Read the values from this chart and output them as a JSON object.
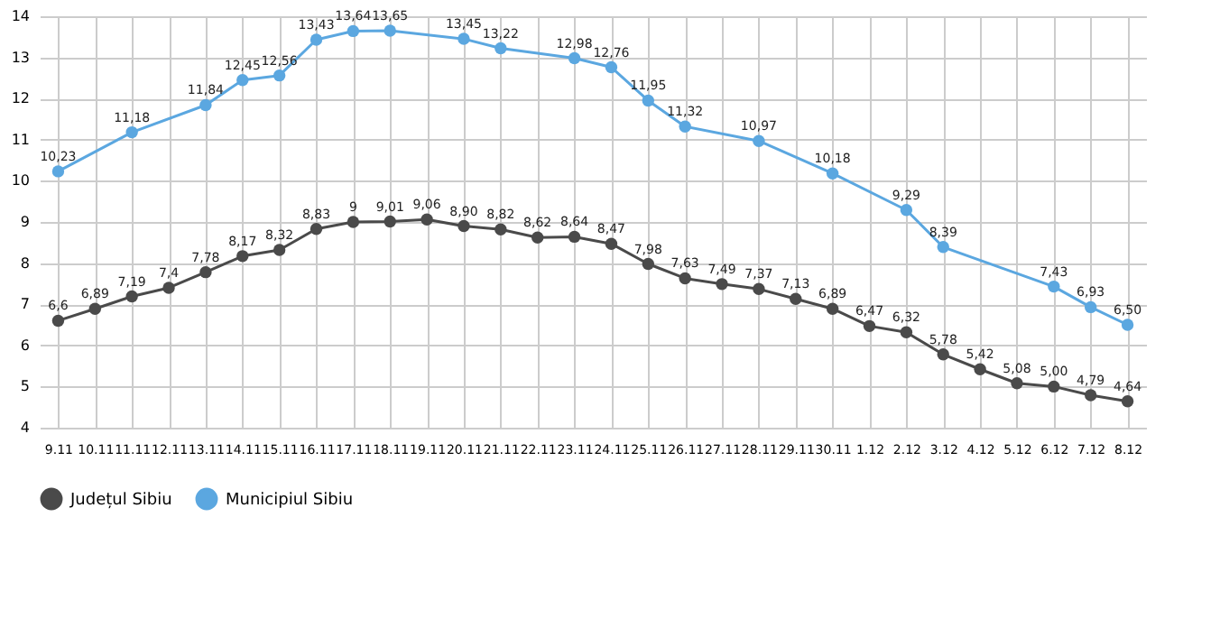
{
  "chart_data": {
    "type": "line",
    "categories": [
      "9.11",
      "10.11",
      "11.11",
      "12.11",
      "13.11",
      "14.11",
      "15.11",
      "16.11",
      "17.11",
      "18.11",
      "19.11",
      "20.11",
      "21.11",
      "22.11",
      "23.11",
      "24.11",
      "25.11",
      "26.11",
      "27.11",
      "28.11",
      "29.11",
      "30.11",
      "1.12",
      "2.12",
      "3.12",
      "4.12",
      "5.12",
      "6.12",
      "7.12",
      "8.12"
    ],
    "series": [
      {
        "name": "Județul Sibiu",
        "color": "#4a4a4a",
        "values": [
          6.6,
          6.89,
          7.19,
          7.4,
          7.78,
          8.17,
          8.32,
          8.83,
          9,
          9.01,
          9.06,
          8.9,
          8.82,
          8.62,
          8.64,
          8.47,
          7.98,
          7.63,
          7.49,
          7.37,
          7.13,
          6.89,
          6.47,
          6.32,
          5.78,
          5.42,
          5.08,
          5.0,
          4.79,
          4.64
        ],
        "value_labels": [
          "6,6",
          "6,89",
          "7,19",
          "7,4",
          "7,78",
          "8,17",
          "8,32",
          "8,83",
          "9",
          "9,01",
          "9,06",
          "8,90",
          "8,82",
          "8,62",
          "8,64",
          "8,47",
          "7,98",
          "7,63",
          "7,49",
          "7,37",
          "7,13",
          "6,89",
          "6,47",
          "6,32",
          "5,78",
          "5,42",
          "5,08",
          "5,00",
          "4,79",
          "4,64"
        ]
      },
      {
        "name": "Municipiul Sibiu",
        "color": "#5ba7e0",
        "values": [
          10.23,
          null,
          11.18,
          null,
          11.84,
          12.45,
          12.56,
          13.43,
          13.64,
          13.65,
          null,
          13.45,
          13.22,
          null,
          12.98,
          12.76,
          11.95,
          11.32,
          null,
          10.97,
          null,
          10.18,
          null,
          9.29,
          8.39,
          null,
          null,
          7.43,
          6.93,
          6.5
        ],
        "value_labels": [
          "10,23",
          null,
          "11,18",
          null,
          "11,84",
          "12,45",
          "12,56",
          "13,43",
          "13,64",
          "13,65",
          null,
          "13,45",
          "13,22",
          null,
          "12,98",
          "12,76",
          "11,95",
          "11,32",
          null,
          "10,97",
          null,
          "10,18",
          null,
          "9,29",
          "8,39",
          null,
          null,
          "7,43",
          "6,93",
          "6,50"
        ]
      }
    ],
    "ylim": [
      4,
      14
    ],
    "yticks": [
      4,
      5,
      6,
      7,
      8,
      9,
      10,
      11,
      12,
      13,
      14
    ],
    "grid": true,
    "legend": "bottom",
    "marker": "circle",
    "line_style": "solid"
  }
}
